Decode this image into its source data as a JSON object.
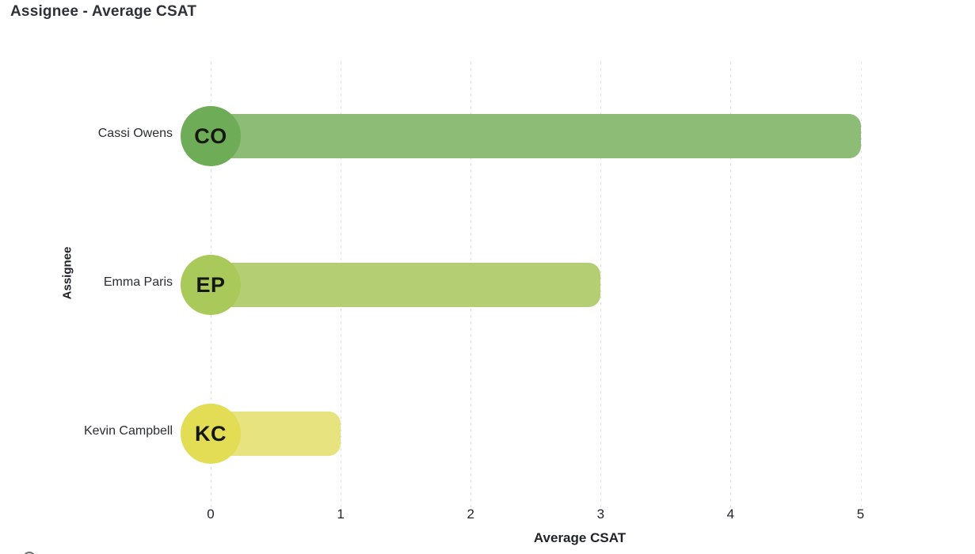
{
  "chart_data": {
    "type": "bar",
    "orientation": "horizontal",
    "title": "Assignee - Average CSAT",
    "xlabel": "Average CSAT",
    "ylabel": "Assignee",
    "xlim": [
      0,
      5
    ],
    "x_ticks": [
      "0",
      "1",
      "2",
      "3",
      "4",
      "5"
    ],
    "grid": "vertical-dashed",
    "legend": "none",
    "categories": [
      "Cassi Owens",
      "Emma Paris",
      "Kevin Campbell"
    ],
    "values": [
      5,
      3,
      1
    ],
    "rows": [
      {
        "label": "Cassi Owens",
        "initials": "CO",
        "value": 5,
        "avatar_color": "#6FAC58",
        "bar_color": "#8CBC75"
      },
      {
        "label": "Emma Paris",
        "initials": "EP",
        "value": 3,
        "avatar_color": "#A9C95B",
        "bar_color": "#B4CE73"
      },
      {
        "label": "Kevin Campbell",
        "initials": "KC",
        "value": 1,
        "avatar_color": "#E2DD55",
        "bar_color": "#E7E37E"
      }
    ]
  },
  "colors": {
    "title_text": "#2E3238",
    "axis_text": "#1F2327",
    "category_text": "#2A2E33",
    "gridline": "#E1E1E1",
    "background": "#FFFFFF"
  }
}
